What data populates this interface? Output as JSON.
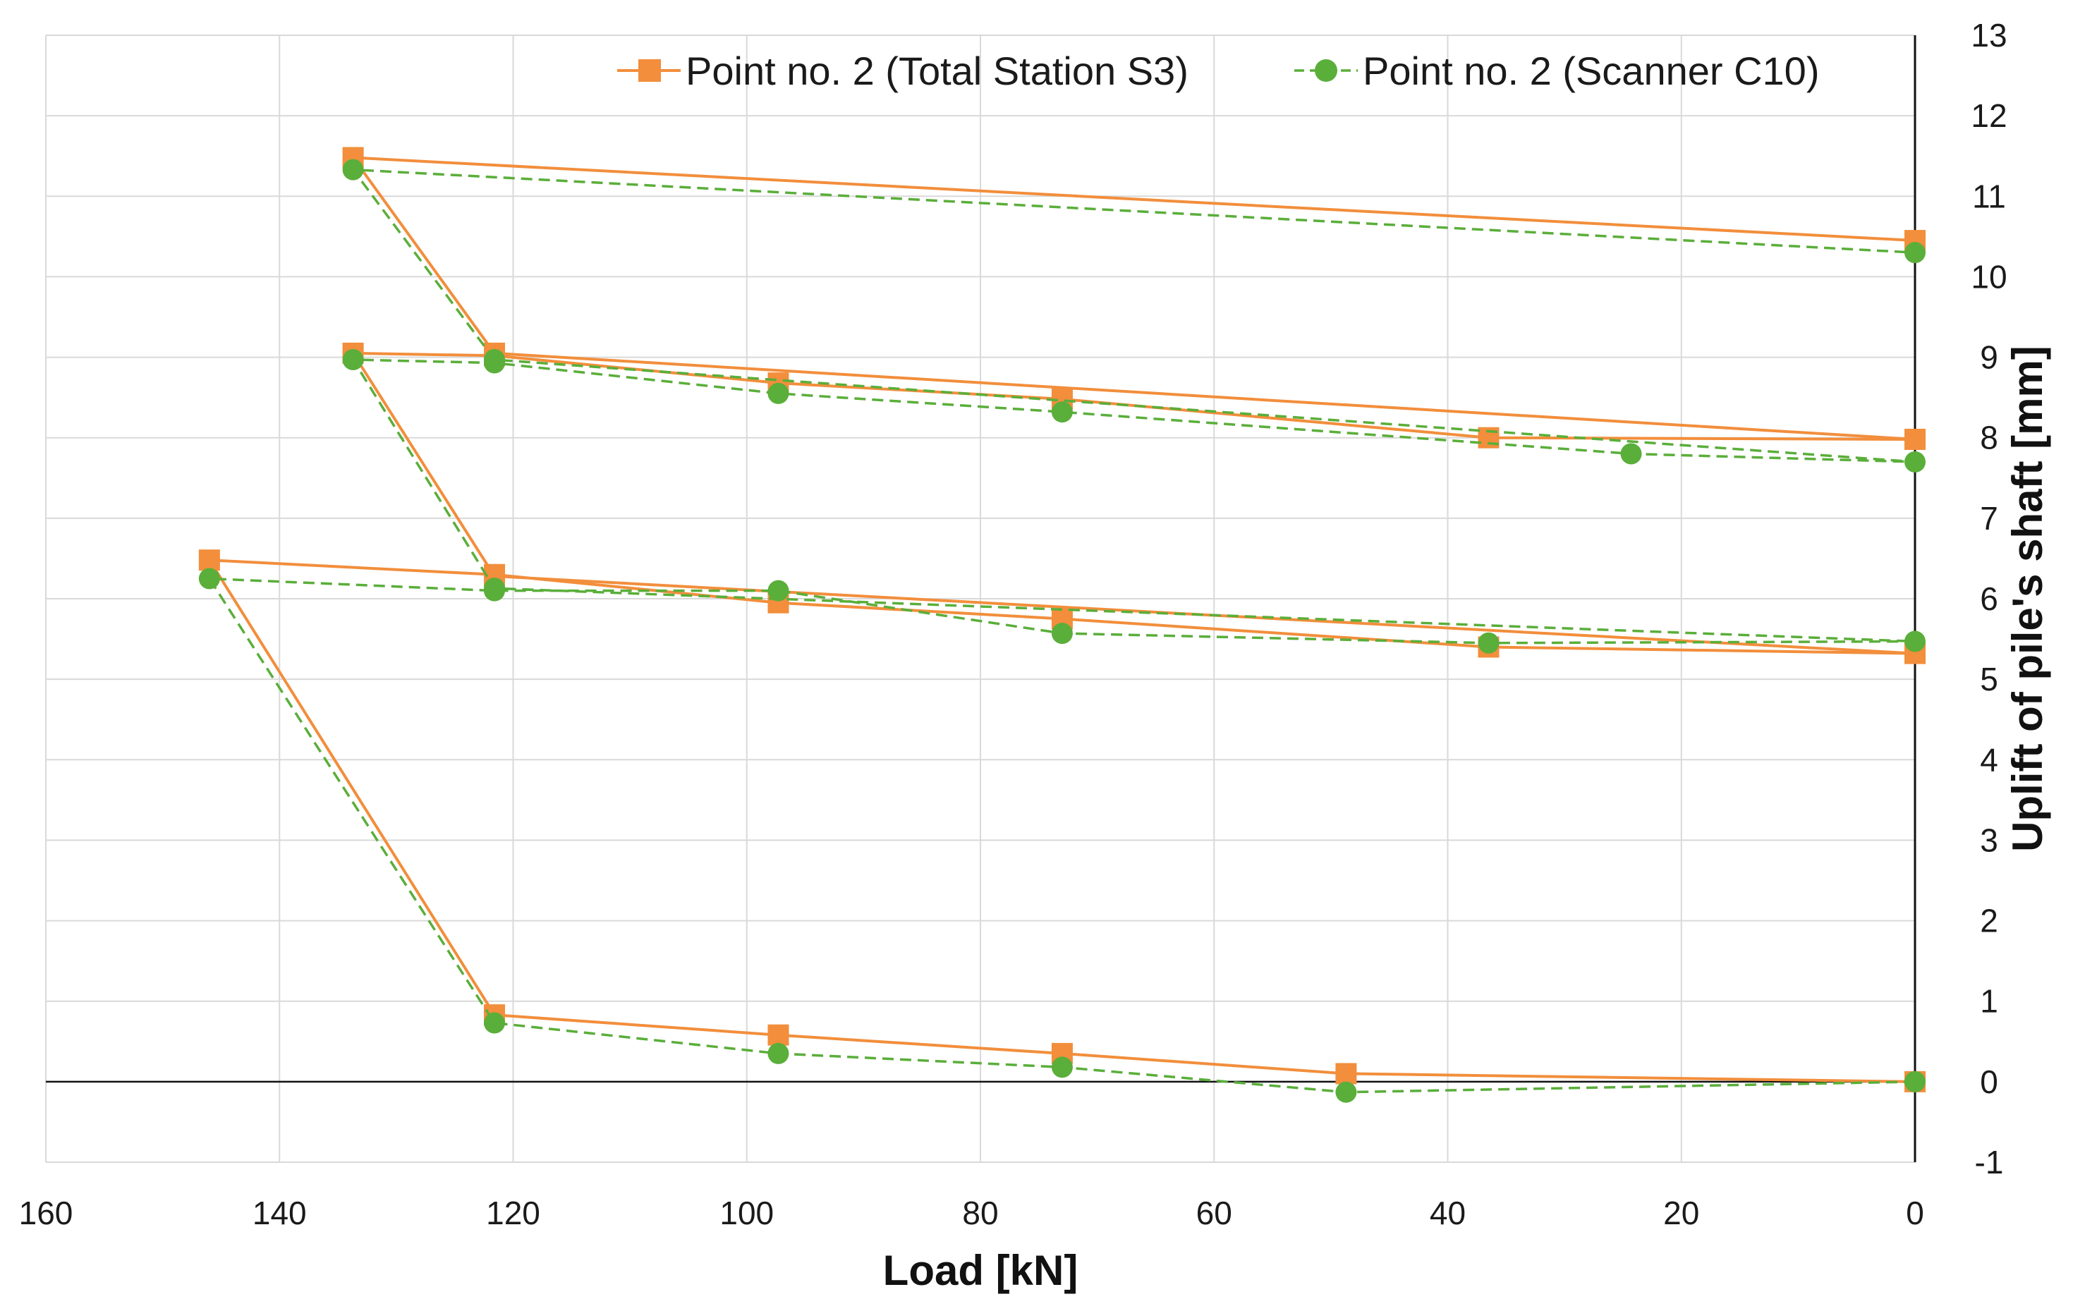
{
  "chart_data": {
    "type": "line",
    "title": "",
    "xlabel": "Load [kN]",
    "ylabel": "Uplift of pile's shaft [mm]",
    "xlim": [
      160,
      0
    ],
    "ylim": [
      -1,
      13
    ],
    "x_reversed": true,
    "y_axis_side": "right",
    "grid": true,
    "legend_position": "top",
    "x_ticks": [
      "160",
      "140",
      "120",
      "100",
      "80",
      "60",
      "40",
      "20",
      "0"
    ],
    "y_ticks": [
      "-1",
      "0",
      "1",
      "2",
      "3",
      "4",
      "5",
      "6",
      "7",
      "8",
      "9",
      "10",
      "11",
      "12",
      "13"
    ],
    "series": [
      {
        "name": "Point no. 2 (Total Station S3)",
        "color": "#f28e3c",
        "line_style": "solid",
        "marker": "square",
        "points": [
          [
            0,
            0.0
          ],
          [
            48.7,
            0.1
          ],
          [
            73,
            0.35
          ],
          [
            97.3,
            0.58
          ],
          [
            121.6,
            0.83
          ],
          [
            146,
            6.48
          ],
          [
            121.6,
            6.3
          ],
          [
            97.3,
            5.95
          ],
          [
            73,
            5.75
          ],
          [
            36.5,
            5.4
          ],
          [
            0,
            5.32
          ],
          [
            121.6,
            6.28
          ],
          [
            133.7,
            9.05
          ],
          [
            121.6,
            9.02
          ],
          [
            97.3,
            8.68
          ],
          [
            73,
            8.48
          ],
          [
            36.5,
            8.0
          ],
          [
            0,
            7.98
          ],
          [
            121.6,
            9.05
          ],
          [
            133.7,
            11.48
          ],
          [
            0,
            10.45
          ]
        ]
      },
      {
        "name": "Point no. 2 (Scanner C10)",
        "color": "#5aae3a",
        "line_style": "dashed",
        "marker": "circle",
        "points": [
          [
            0,
            0.0
          ],
          [
            48.7,
            -0.13
          ],
          [
            73,
            0.18
          ],
          [
            97.3,
            0.35
          ],
          [
            121.6,
            0.73
          ],
          [
            146,
            6.25
          ],
          [
            121.6,
            6.1
          ],
          [
            97.3,
            6.1
          ],
          [
            73,
            5.57
          ],
          [
            36.5,
            5.45
          ],
          [
            0,
            5.47
          ],
          [
            121.6,
            6.13
          ],
          [
            133.7,
            8.97
          ],
          [
            121.6,
            8.93
          ],
          [
            97.3,
            8.55
          ],
          [
            73,
            8.32
          ],
          [
            24.3,
            7.8
          ],
          [
            0,
            7.7
          ],
          [
            121.6,
            8.97
          ],
          [
            133.7,
            11.33
          ],
          [
            0,
            10.3
          ]
        ]
      }
    ]
  }
}
